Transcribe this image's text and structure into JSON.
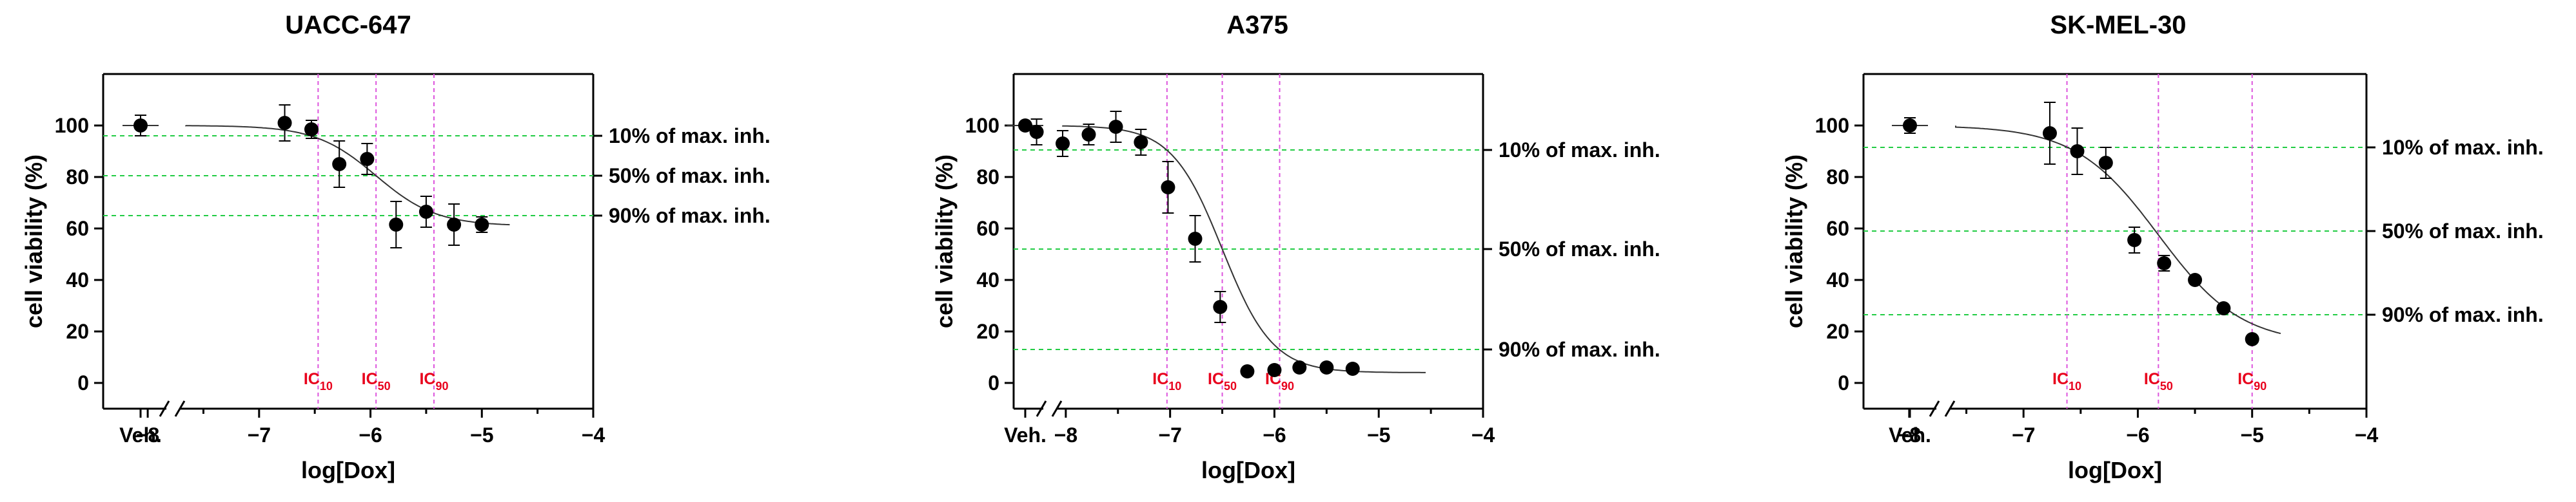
{
  "figure": {
    "colors": {
      "points": "#000000",
      "curve": "#333333",
      "guide_green": "#22cc44",
      "guide_magenta": "#dd55dd",
      "ic_text": "#e8001c",
      "axis": "#000000"
    }
  },
  "chart_data": [
    {
      "type": "scatter",
      "title": "UACC-647",
      "xlabel": "log[Dox]",
      "ylabel": "cell viability (%)",
      "xlim": [
        -8.4,
        -4
      ],
      "ylim": [
        -10,
        120
      ],
      "yticks": [
        0,
        20,
        40,
        60,
        80,
        100
      ],
      "xticks": [
        -8,
        -7,
        -6,
        -5,
        -4
      ],
      "xtick_labels": [
        "−8",
        "−7",
        "−6",
        "−5",
        "−4"
      ],
      "vehicle_label": "Veh.",
      "vehicle": {
        "y": 100,
        "err": 4
      },
      "points": [
        {
          "x": -6.77,
          "y": 101,
          "err": 7
        },
        {
          "x": -6.53,
          "y": 98.5,
          "err": 3.5
        },
        {
          "x": -6.28,
          "y": 85,
          "err": 9
        },
        {
          "x": -6.03,
          "y": 87,
          "err": 6
        },
        {
          "x": -5.77,
          "y": 61.5,
          "err": 9
        },
        {
          "x": -5.5,
          "y": 66.5,
          "err": 6
        },
        {
          "x": -5.25,
          "y": 61.5,
          "err": 8
        },
        {
          "x": -5.0,
          "y": 61.5,
          "err": 3
        }
      ],
      "curve": {
        "top": 100,
        "bottom": 61,
        "logic50": -5.95,
        "hill": 1.6,
        "xmin": -8.5,
        "xmax": -4.75
      },
      "ic_lines": [
        {
          "label": "IC",
          "sub": "10",
          "x": -6.47
        },
        {
          "label": "IC",
          "sub": "50",
          "x": -5.95
        },
        {
          "label": "IC",
          "sub": "90",
          "x": -5.43
        }
      ],
      "inh_lines": [
        {
          "label": "10% of max. inh.",
          "y": 96
        },
        {
          "label": "50% of max. inh.",
          "y": 80.5
        },
        {
          "label": "90% of max. inh.",
          "y": 65
        }
      ]
    },
    {
      "type": "scatter",
      "title": "A375",
      "xlabel": "log[Dox]",
      "ylabel": "cell viability (%)",
      "xlim": [
        -8.5,
        -4
      ],
      "ylim": [
        -10,
        120
      ],
      "yticks": [
        0,
        20,
        40,
        60,
        80,
        100
      ],
      "xticks": [
        -8,
        -7,
        -6,
        -5,
        -4
      ],
      "xtick_labels": [
        "−8",
        "−7",
        "−6",
        "−5",
        "−4"
      ],
      "vehicle_label": "Veh.",
      "vehicle": {
        "y": 100,
        "err": 1
      },
      "points": [
        {
          "x": -8.28,
          "y": 97.5,
          "err": 5
        },
        {
          "x": -8.03,
          "y": 93,
          "err": 5
        },
        {
          "x": -7.78,
          "y": 96.5,
          "err": 4
        },
        {
          "x": -7.52,
          "y": 99.5,
          "err": 6
        },
        {
          "x": -7.28,
          "y": 93.5,
          "err": 5
        },
        {
          "x": -7.02,
          "y": 76,
          "err": 10
        },
        {
          "x": -6.76,
          "y": 56,
          "err": 9
        },
        {
          "x": -6.52,
          "y": 29.5,
          "err": 6
        },
        {
          "x": -6.26,
          "y": 4.5,
          "err": 1
        },
        {
          "x": -6.0,
          "y": 5,
          "err": 1
        },
        {
          "x": -5.76,
          "y": 6,
          "err": 1
        },
        {
          "x": -5.5,
          "y": 6,
          "err": 1
        },
        {
          "x": -5.25,
          "y": 5.5,
          "err": 1
        }
      ],
      "curve": {
        "top": 100,
        "bottom": 4,
        "logic50": -6.5,
        "hill": 1.8,
        "xmin": -8.5,
        "xmax": -4.55
      },
      "ic_lines": [
        {
          "label": "IC",
          "sub": "10",
          "x": -7.03
        },
        {
          "label": "IC",
          "sub": "50",
          "x": -6.5
        },
        {
          "label": "IC",
          "sub": "90",
          "x": -5.95
        }
      ],
      "inh_lines": [
        {
          "label": "10% of max. inh.",
          "y": 90.5
        },
        {
          "label": "50% of max. inh.",
          "y": 52
        },
        {
          "label": "90% of max. inh.",
          "y": 13
        }
      ]
    },
    {
      "type": "scatter",
      "title": "SK-MEL-30",
      "xlabel": "log[Dox]",
      "ylabel": "cell viability (%)",
      "xlim": [
        -8.4,
        -4
      ],
      "ylim": [
        -10,
        120
      ],
      "yticks": [
        0,
        20,
        40,
        60,
        80,
        100
      ],
      "xticks": [
        -8,
        -7,
        -6,
        -5,
        -4
      ],
      "xtick_labels": [
        "−8",
        "−7",
        "−6",
        "−5",
        "−4"
      ],
      "vehicle_label": "Veh.",
      "vehicle": {
        "y": 100,
        "err": 3
      },
      "points": [
        {
          "x": -6.77,
          "y": 97,
          "err": 12
        },
        {
          "x": -6.53,
          "y": 90,
          "err": 9
        },
        {
          "x": -6.28,
          "y": 85.5,
          "err": 6
        },
        {
          "x": -6.03,
          "y": 55.5,
          "err": 5
        },
        {
          "x": -5.77,
          "y": 46.5,
          "err": 3
        },
        {
          "x": -5.5,
          "y": 40,
          "err": 1
        },
        {
          "x": -5.25,
          "y": 29,
          "err": 1
        },
        {
          "x": -5.0,
          "y": 17,
          "err": 1
        }
      ],
      "curve": {
        "top": 100,
        "bottom": 15,
        "logic50": -5.82,
        "hill": 1.2,
        "xmin": -8.5,
        "xmax": -4.75
      },
      "ic_lines": [
        {
          "label": "IC",
          "sub": "10",
          "x": -6.62
        },
        {
          "label": "IC",
          "sub": "50",
          "x": -5.82
        },
        {
          "label": "IC",
          "sub": "90",
          "x": -5.0
        }
      ],
      "inh_lines": [
        {
          "label": "10% of max. inh.",
          "y": 91.5
        },
        {
          "label": "50% of max. inh.",
          "y": 59
        },
        {
          "label": "90% of max. inh.",
          "y": 26.5
        }
      ]
    }
  ]
}
